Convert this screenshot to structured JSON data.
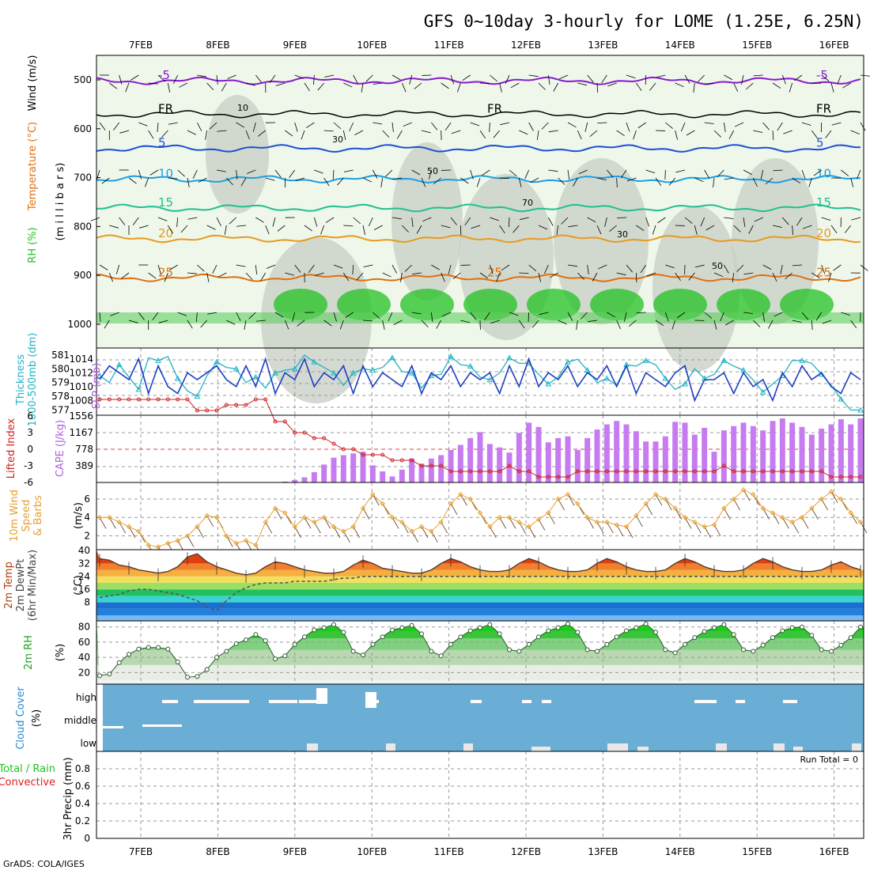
{
  "title": "GFS 0~10day 3-hourly for LOME (1.25E, 6.25N)",
  "credit": "GrADS: COLA/IGES",
  "colors": {
    "rh_green": "#22c122",
    "temp_blue": "#1f4fd6",
    "temp_cyan": "#1a9fe6",
    "temp_teal": "#20c090",
    "temp_orange": "#e89a20",
    "temp_dark_orange": "#e07010",
    "temp_magenta": "#d0107a",
    "temp_purple": "#8a1ad0",
    "cape_bar": "#c67cf0",
    "li_line": "#d02020",
    "slp_line": "#1f3fc0",
    "thk_line": "#20b4c4",
    "wind_line": "#e8a030",
    "cloud_bg": "#6aaed6"
  },
  "chart_data": [
    {
      "type": "contour",
      "panel": "upper-air",
      "x_dates": [
        "7FEB",
        "8FEB",
        "9FEB",
        "10FEB",
        "11FEB",
        "12FEB",
        "13FEB",
        "14FEB",
        "15FEB",
        "16FEB"
      ],
      "y_ticks": [
        "500",
        "600",
        "700",
        "800",
        "900",
        "1000"
      ],
      "ylabel_units": "(m i l l i b a r s)",
      "ylabel_wind": "Wind (m/s)",
      "ylabel_temp": "Temperature (°C)",
      "ylabel_rh": "RH (%)",
      "contours": [
        {
          "name": "-5",
          "level_mb": 502,
          "labels": [
            "-5",
            "-5"
          ]
        },
        {
          "name": "FR",
          "level_mb": 570,
          "labels": [
            "FR",
            "FR",
            "FR"
          ]
        },
        {
          "name": "5",
          "level_mb": 640,
          "labels": [
            "5",
            "5"
          ]
        },
        {
          "name": "10",
          "level_mb": 703,
          "labels": [
            "10",
            "10"
          ]
        },
        {
          "name": "15",
          "level_mb": 762,
          "labels": [
            "15",
            "15"
          ]
        },
        {
          "name": "20",
          "level_mb": 825,
          "labels": [
            "20",
            "20"
          ]
        },
        {
          "name": "25",
          "level_mb": 905,
          "labels": [
            "25",
            "25",
            "25"
          ]
        }
      ],
      "rh_labels": [
        "10",
        "30",
        "50",
        "70",
        "30",
        "50"
      ]
    },
    {
      "type": "line",
      "panel": "slp-thickness",
      "ylabel_left": "Thickness 1000-500mb (dm)",
      "ylabel_right": "SLP (mb)",
      "thickness_ticks": [
        "581",
        "580",
        "579",
        "578",
        "577"
      ],
      "slp_ticks": [
        "1014",
        "1012",
        "1010",
        "1008"
      ],
      "slp_range": [
        1007,
        1015
      ],
      "thickness_range": [
        576.8,
        581.4
      ],
      "slp": [
        1011,
        1013,
        1012,
        1011,
        1014,
        1009,
        1013,
        1010,
        1009,
        1012,
        1011,
        1012,
        1013,
        1011,
        1010,
        1013,
        1010,
        1014,
        1009,
        1012,
        1011,
        1014,
        1010,
        1012,
        1011,
        1013,
        1009,
        1013,
        1010,
        1012,
        1011,
        1010,
        1013,
        1009,
        1012,
        1011,
        1013,
        1010,
        1012,
        1011,
        1012,
        1009,
        1013,
        1010,
        1014,
        1010,
        1012,
        1011,
        1013,
        1010,
        1012,
        1011,
        1013,
        1010,
        1013,
        1009,
        1012,
        1011,
        1010,
        1012,
        1013,
        1008,
        1011,
        1011,
        1012,
        1009,
        1012,
        1010,
        1011,
        1008,
        1012,
        1010,
        1013,
        1011,
        1012,
        1010,
        1009,
        1012,
        1011
      ],
      "thickness": [
        579.5,
        579.0,
        580.3,
        579.4,
        578.5,
        580.8,
        580.6,
        580.9,
        579.3,
        578.4,
        578.0,
        579.5,
        580.5,
        580.1,
        580.0,
        579.0,
        579.4,
        578.6,
        579.7,
        579.9,
        580.0,
        581.0,
        580.5,
        580.1,
        579.7,
        578.8,
        579.7,
        580.0,
        579.9,
        580.1,
        580.8,
        579.8,
        579.7,
        578.6,
        579.5,
        579.6,
        580.9,
        580.3,
        580.2,
        579.4,
        579.2,
        579.7,
        580.8,
        580.4,
        580.4,
        579.6,
        578.9,
        579.4,
        580.5,
        580.7,
        579.9,
        579.0,
        579.3,
        578.8,
        580.3,
        580.2,
        580.6,
        580.3,
        579.3,
        578.5,
        578.9,
        580.0,
        579.3,
        579.6,
        580.6,
        580.2,
        579.9,
        579.2,
        578.3,
        578.9,
        579.5,
        580.6,
        580.6,
        580.4,
        579.6,
        578.8,
        577.8,
        577.0,
        577.0
      ]
    },
    {
      "type": "bar+line",
      "panel": "cape-li",
      "ylabel_left": "Lifted Index",
      "ylabel_right": "CAPE (J/kg)",
      "li_ticks": [
        "-6",
        "-3",
        "0",
        "3",
        "6"
      ],
      "cape_ticks": [
        "1556",
        "1167",
        "778",
        "389"
      ],
      "cape_range": [
        0,
        1556
      ],
      "li_range": [
        6,
        -6
      ],
      "cape": [
        0,
        0,
        0,
        0,
        0,
        0,
        0,
        0,
        0,
        0,
        0,
        0,
        0,
        0,
        0,
        0,
        0,
        0,
        0,
        20,
        60,
        120,
        240,
        420,
        580,
        640,
        680,
        720,
        400,
        260,
        140,
        300,
        560,
        440,
        560,
        640,
        760,
        880,
        1040,
        1180,
        900,
        820,
        700,
        1160,
        1400,
        1300,
        940,
        1040,
        1080,
        760,
        1040,
        1240,
        1360,
        1440,
        1360,
        1200,
        960,
        960,
        1080,
        1420,
        1400,
        1120,
        1280,
        720,
        1220,
        1320,
        1400,
        1320,
        1220,
        1440,
        1500,
        1400,
        1300,
        1120,
        1260,
        1360,
        1480,
        1360,
        1500
      ],
      "lifted_index": [
        9,
        9,
        9,
        9,
        9,
        9,
        9,
        9,
        9,
        9,
        7,
        7,
        7,
        8,
        8,
        8,
        9,
        9,
        5,
        5,
        3,
        3,
        2,
        2,
        1,
        0,
        0,
        -1,
        -1,
        -1,
        -2,
        -2,
        -2,
        -3,
        -3,
        -3,
        -4,
        -4,
        -4,
        -4,
        -4,
        -4,
        -3,
        -4,
        -4,
        -5,
        -5,
        -5,
        -5,
        -4,
        -4,
        -4,
        -4,
        -4,
        -4,
        -4,
        -4,
        -4,
        -4,
        -4,
        -4,
        -4,
        -4,
        -4,
        -3,
        -4,
        -4,
        -4,
        -4,
        -4,
        -4,
        -4,
        -4,
        -4,
        -4,
        -5,
        -5,
        -5,
        -5
      ]
    },
    {
      "type": "line",
      "panel": "10m-wind",
      "ylabel": "10m Wind Speed & Barbs (m/s)",
      "y_ticks": [
        "6",
        "4",
        "2"
      ],
      "ylim": [
        0.5,
        7.8
      ],
      "wind_speed": [
        4,
        4,
        3.5,
        3,
        2.5,
        1,
        0.8,
        1.2,
        1.5,
        2,
        3,
        4.2,
        4,
        2,
        1.2,
        1.5,
        1,
        3.5,
        5,
        4.5,
        3,
        4,
        3.5,
        4,
        3,
        2.5,
        3,
        5,
        6.5,
        5.5,
        4,
        3.5,
        2.5,
        3,
        2.5,
        3.5,
        5.5,
        6.5,
        6,
        4.5,
        3,
        4,
        4,
        3.5,
        3,
        3.8,
        4.5,
        6,
        6.5,
        5.5,
        4,
        3.5,
        3.5,
        3.2,
        3,
        4.2,
        5.5,
        6.5,
        6,
        5,
        4,
        3.5,
        3,
        3.2,
        5,
        6,
        7,
        6.5,
        5,
        4.5,
        4,
        3.5,
        4,
        5,
        6,
        6.8,
        6,
        4.5,
        3.5
      ]
    },
    {
      "type": "area",
      "panel": "2m-temp",
      "ylabel": "2m Temp 2m DewPt (6hr Min/Max) (°C)",
      "y_ticks": [
        "40",
        "32",
        "24",
        "16",
        "8"
      ],
      "ylim": [
        0,
        40
      ],
      "temp": [
        35,
        34,
        31,
        30,
        28,
        27,
        26,
        27,
        30,
        36,
        38,
        33,
        30,
        28,
        26,
        25,
        26,
        30,
        33,
        32,
        30,
        28,
        27,
        26,
        26,
        27,
        31,
        34,
        32,
        29,
        28,
        27,
        26,
        26,
        28,
        32,
        35,
        33,
        30,
        28,
        27,
        27,
        28,
        32,
        35,
        33,
        30,
        28,
        27,
        27,
        28,
        32,
        35,
        33,
        30,
        28,
        27,
        27,
        28,
        32,
        35,
        33,
        30,
        28,
        27,
        27,
        28,
        32,
        35,
        33,
        30,
        28,
        27,
        27,
        28,
        31,
        33,
        30,
        28
      ],
      "dewpoint": [
        11,
        12,
        13,
        15,
        16,
        16,
        15,
        14,
        13,
        11,
        9,
        5,
        3,
        9,
        14,
        17,
        19,
        20,
        20,
        20,
        21,
        21,
        21,
        21,
        22,
        23,
        23,
        24,
        24,
        24,
        24,
        24,
        24,
        24,
        24,
        24,
        24,
        24,
        24,
        24,
        24,
        24,
        24,
        24,
        24,
        24,
        24,
        24,
        24,
        24,
        24,
        24,
        24,
        24,
        24,
        24,
        24,
        24,
        24,
        24,
        24,
        24,
        24,
        24,
        24,
        24,
        24,
        24,
        24,
        24,
        24,
        24,
        24,
        24,
        24,
        24,
        24,
        24,
        24
      ]
    },
    {
      "type": "area",
      "panel": "2m-rh",
      "ylabel": "2m RH (%)",
      "y_ticks": [
        "80",
        "60",
        "40",
        "20"
      ],
      "ylim": [
        10,
        88
      ],
      "rh": [
        16,
        18,
        33,
        44,
        51,
        53,
        53,
        51,
        34,
        14,
        15,
        24,
        40,
        48,
        58,
        63,
        70,
        62,
        38,
        42,
        57,
        67,
        76,
        79,
        83,
        73,
        48,
        43,
        57,
        67,
        76,
        79,
        82,
        71,
        48,
        42,
        57,
        67,
        75,
        79,
        83,
        71,
        50,
        48,
        57,
        67,
        75,
        79,
        84,
        73,
        50,
        48,
        57,
        67,
        75,
        79,
        84,
        73,
        50,
        46,
        57,
        66,
        74,
        79,
        83,
        70,
        50,
        48,
        56,
        66,
        75,
        79,
        80,
        69,
        50,
        48,
        56,
        66,
        80
      ]
    },
    {
      "type": "heatmap",
      "panel": "cloud-cover",
      "ylabel": "Cloud Cover (%)",
      "y_ticks": [
        "high",
        "middle",
        "low"
      ]
    },
    {
      "type": "bar",
      "panel": "precip",
      "ylabel": "3hr Precip (mm)",
      "legend": [
        "Total / Rain",
        "Convective"
      ],
      "run_total": "Run Total = 0",
      "y_ticks": [
        "0.8",
        "0.6",
        "0.4",
        "0.2",
        "0"
      ],
      "ylim": [
        0,
        1.0
      ],
      "precip": []
    }
  ]
}
